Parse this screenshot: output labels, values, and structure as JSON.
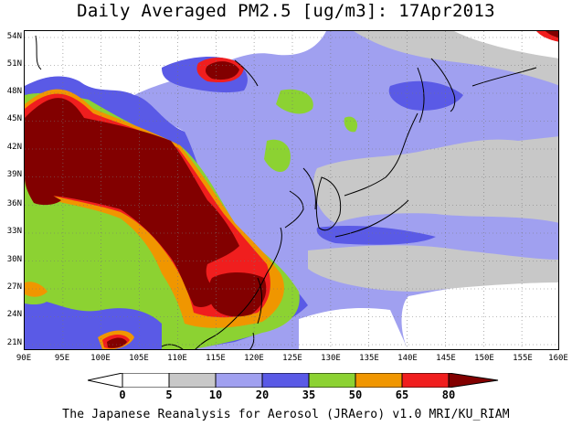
{
  "header": {
    "title": "Daily Averaged PM2.5 [ug/m3]: 17Apr2013"
  },
  "map": {
    "latitude_labels": [
      "54N",
      "51N",
      "48N",
      "45N",
      "42N",
      "39N",
      "36N",
      "33N",
      "30N",
      "27N",
      "24N",
      "21N"
    ],
    "longitude_labels": [
      "90E",
      "95E",
      "100E",
      "105E",
      "110E",
      "115E",
      "120E",
      "125E",
      "130E",
      "135E",
      "140E",
      "145E",
      "150E",
      "155E",
      "160E"
    ]
  },
  "colorbar": {
    "labels": [
      "0",
      "5",
      "10",
      "20",
      "35",
      "50",
      "65",
      "80"
    ],
    "colors": [
      "#ffffff",
      "#c8c8c8",
      "#a0a0f0",
      "#5a5ae6",
      "#8cd232",
      "#f09600",
      "#f01e1e",
      "#820000"
    ]
  },
  "footer": {
    "text": "The Japanese Reanalysis for Aerosol (JRAero) v1.0 MRI/KU_RIAM"
  }
}
